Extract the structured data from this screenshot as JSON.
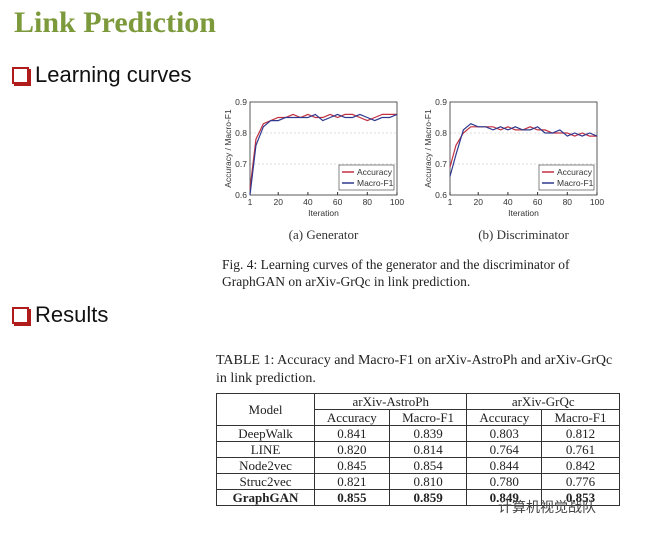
{
  "title": "Link Prediction",
  "bullets": [
    "Learning curves",
    "Results"
  ],
  "chart_data": [
    {
      "type": "line",
      "title": "(a) Generator",
      "xlabel": "Iteration",
      "ylabel": "Accuracy / Macro-F1",
      "x": [
        1,
        5,
        10,
        15,
        20,
        25,
        30,
        35,
        40,
        45,
        50,
        55,
        60,
        65,
        70,
        75,
        80,
        85,
        90,
        95,
        100
      ],
      "series": [
        {
          "name": "Accuracy",
          "color": "#c23040",
          "values": [
            0.62,
            0.78,
            0.83,
            0.84,
            0.85,
            0.85,
            0.86,
            0.85,
            0.86,
            0.85,
            0.85,
            0.86,
            0.85,
            0.86,
            0.86,
            0.85,
            0.84,
            0.85,
            0.86,
            0.86,
            0.86
          ]
        },
        {
          "name": "Macro-F1",
          "color": "#2f3a8f",
          "values": [
            0.6,
            0.76,
            0.82,
            0.84,
            0.84,
            0.85,
            0.85,
            0.85,
            0.85,
            0.86,
            0.84,
            0.85,
            0.86,
            0.85,
            0.85,
            0.86,
            0.85,
            0.84,
            0.85,
            0.85,
            0.86
          ]
        }
      ],
      "xlim": [
        1,
        100
      ],
      "xticks": [
        1,
        20,
        40,
        60,
        80,
        100
      ],
      "ylim": [
        0.6,
        0.9
      ],
      "yticks": [
        0.6,
        0.7,
        0.8,
        0.9
      ],
      "grid": true,
      "legend": "lower right"
    },
    {
      "type": "line",
      "title": "(b) Discriminator",
      "xlabel": "Iteration",
      "ylabel": "Accuracy / Macro-F1",
      "x": [
        1,
        5,
        10,
        15,
        20,
        25,
        30,
        35,
        40,
        45,
        50,
        55,
        60,
        65,
        70,
        75,
        80,
        85,
        90,
        95,
        100
      ],
      "series": [
        {
          "name": "Accuracy",
          "color": "#c23040",
          "values": [
            0.69,
            0.76,
            0.8,
            0.82,
            0.82,
            0.82,
            0.82,
            0.81,
            0.82,
            0.81,
            0.81,
            0.82,
            0.81,
            0.81,
            0.8,
            0.8,
            0.8,
            0.79,
            0.8,
            0.79,
            0.79
          ]
        },
        {
          "name": "Macro-F1",
          "color": "#2f3a8f",
          "values": [
            0.66,
            0.73,
            0.81,
            0.83,
            0.82,
            0.82,
            0.81,
            0.82,
            0.81,
            0.82,
            0.81,
            0.81,
            0.82,
            0.8,
            0.8,
            0.81,
            0.79,
            0.8,
            0.79,
            0.8,
            0.79
          ]
        }
      ],
      "xlim": [
        1,
        100
      ],
      "xticks": [
        1,
        20,
        40,
        60,
        80,
        100
      ],
      "ylim": [
        0.6,
        0.9
      ],
      "yticks": [
        0.6,
        0.7,
        0.8,
        0.9
      ],
      "grid": true,
      "legend": "lower right"
    }
  ],
  "figure_caption": "Fig. 4: Learning curves of the generator and the discriminator of GraphGAN on arXiv-GrQc in link prediction.",
  "table": {
    "caption": "TABLE 1: Accuracy and Macro-F1 on arXiv-AstroPh and arXiv-GrQc in link prediction.",
    "header": [
      "Model",
      "arXiv-AstroPh",
      "arXiv-GrQc"
    ],
    "subheader": [
      "Accuracy",
      "Macro-F1",
      "Accuracy",
      "Macro-F1"
    ],
    "rows": [
      [
        "DeepWalk",
        "0.841",
        "0.839",
        "0.803",
        "0.812"
      ],
      [
        "LINE",
        "0.820",
        "0.814",
        "0.764",
        "0.761"
      ],
      [
        "Node2vec",
        "0.845",
        "0.854",
        "0.844",
        "0.842"
      ],
      [
        "Struc2vec",
        "0.821",
        "0.810",
        "0.780",
        "0.776"
      ],
      [
        "GraphGAN",
        "0.855",
        "0.859",
        "0.849",
        "0.853"
      ]
    ]
  },
  "watermark": "计算机视觉战队"
}
